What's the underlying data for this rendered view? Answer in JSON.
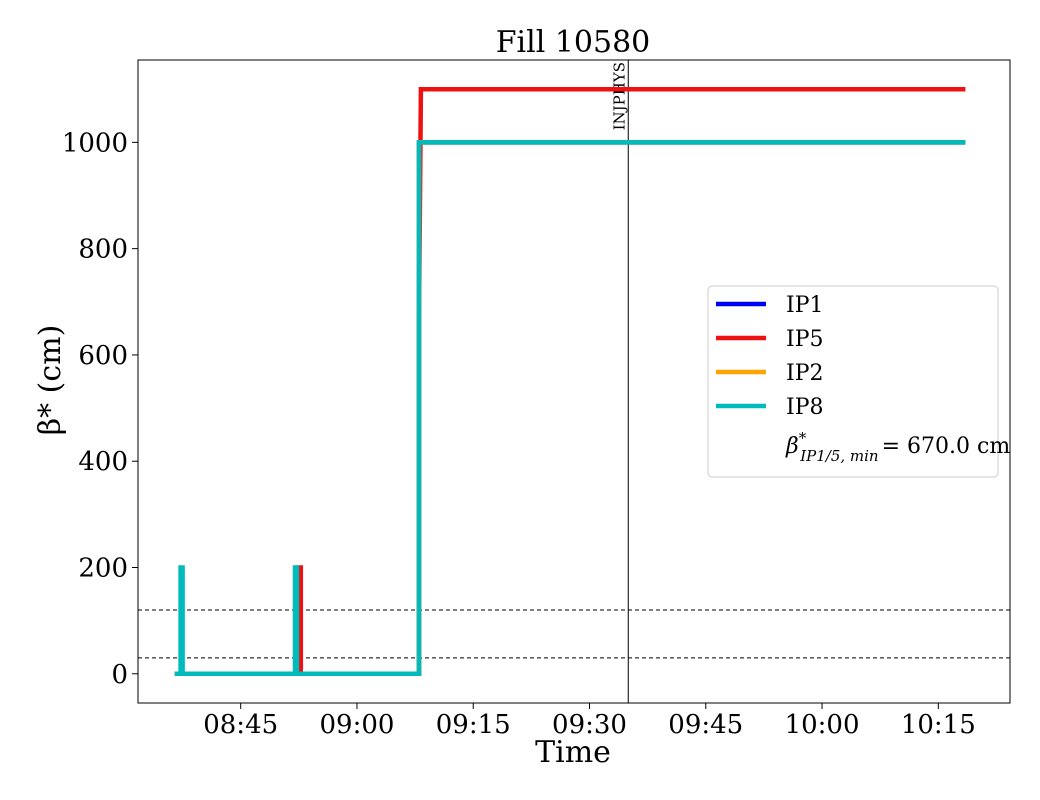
{
  "chart_data": {
    "type": "line",
    "title": "Fill 10580",
    "xlabel": "Time",
    "ylabel": "β* (cm)",
    "x_unit": "time of day (hh:mm)",
    "xlim": [
      "08:31:45",
      "10:24:15"
    ],
    "ylim": [
      -55,
      1155
    ],
    "x_ticks": [
      "08:45",
      "09:00",
      "09:15",
      "09:30",
      "09:45",
      "10:00",
      "10:15"
    ],
    "y_ticks": [
      0,
      200,
      400,
      600,
      800,
      1000
    ],
    "grid": false,
    "legend_position": "center-right",
    "series": [
      {
        "name": "IP1",
        "color": "#0000ff",
        "points": [
          [
            "08:36:30",
            0
          ],
          [
            "09:08:00",
            0
          ],
          [
            "09:08:00",
            1000
          ],
          [
            "10:18:30",
            1000
          ]
        ]
      },
      {
        "name": "IP5",
        "color": "#ee1111",
        "points": [
          [
            "08:36:30",
            0
          ],
          [
            "08:52:30",
            0
          ],
          [
            "08:52:30",
            200
          ],
          [
            "08:52:45",
            200
          ],
          [
            "08:52:45",
            0
          ],
          [
            "09:08:00",
            0
          ],
          [
            "09:08:00",
            670
          ],
          [
            "09:08:15",
            1100
          ],
          [
            "10:18:30",
            1100
          ]
        ]
      },
      {
        "name": "IP2",
        "color": "#ffa500",
        "points": [
          [
            "08:36:30",
            0
          ],
          [
            "09:08:00",
            0
          ],
          [
            "09:08:00",
            1000
          ],
          [
            "10:18:30",
            1000
          ]
        ]
      },
      {
        "name": "IP8",
        "color": "#00bbbb",
        "points": [
          [
            "08:36:30",
            0
          ],
          [
            "08:37:15",
            0
          ],
          [
            "08:37:15",
            200
          ],
          [
            "08:37:30",
            200
          ],
          [
            "08:37:30",
            0
          ],
          [
            "08:52:00",
            0
          ],
          [
            "08:52:00",
            200
          ],
          [
            "08:52:15",
            200
          ],
          [
            "08:52:15",
            0
          ],
          [
            "09:08:00",
            0
          ],
          [
            "09:08:00",
            1000
          ],
          [
            "10:18:30",
            1000
          ]
        ]
      }
    ],
    "hlines": [
      {
        "y": 30,
        "style": "dashed",
        "color": "#000000"
      },
      {
        "y": 120,
        "style": "dashed",
        "color": "#000000"
      }
    ],
    "vlines": [
      {
        "x": "09:35:00",
        "label": "INJPHYS",
        "color": "#000000"
      }
    ],
    "legend_extra": {
      "prefix": "β",
      "sup": "*",
      "sub": "IP1/5, min",
      "suffix": "= 670.0 cm"
    }
  }
}
